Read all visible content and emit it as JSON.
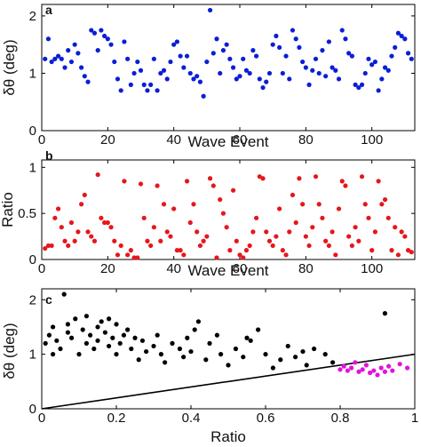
{
  "chart_data": [
    {
      "panel": "a",
      "type": "scatter",
      "xlabel": "Wave Event",
      "ylabel": "δθ (deg)",
      "xlim": [
        0,
        113
      ],
      "ylim": [
        0,
        2.2
      ],
      "xticks": [
        0,
        20,
        40,
        60,
        80,
        100
      ],
      "yticks": [
        0,
        1,
        2
      ],
      "color": "#0a1ed6",
      "x": [
        1,
        2,
        3,
        4,
        5,
        6,
        7,
        8,
        9,
        10,
        11,
        12,
        13,
        14,
        15,
        16,
        17,
        18,
        19,
        20,
        21,
        22,
        23,
        24,
        25,
        26,
        27,
        28,
        29,
        30,
        31,
        32,
        33,
        34,
        35,
        36,
        37,
        38,
        39,
        40,
        41,
        42,
        43,
        44,
        45,
        46,
        47,
        48,
        49,
        50,
        51,
        52,
        53,
        54,
        55,
        56,
        57,
        58,
        59,
        60,
        61,
        62,
        63,
        64,
        65,
        66,
        67,
        68,
        69,
        70,
        71,
        72,
        73,
        74,
        75,
        76,
        77,
        78,
        79,
        80,
        81,
        82,
        83,
        84,
        85,
        86,
        87,
        88,
        89,
        90,
        91,
        92,
        93,
        94,
        95,
        96,
        97,
        98,
        99,
        100,
        101,
        102,
        103,
        104,
        105,
        106,
        107,
        108,
        109,
        110,
        111,
        112
      ],
      "y": [
        1.25,
        1.6,
        1.2,
        1.25,
        1.3,
        1.25,
        1.1,
        1.4,
        1.2,
        1.5,
        1.35,
        1.1,
        0.95,
        0.85,
        1.75,
        1.7,
        1.4,
        1.75,
        1.65,
        1.6,
        1.5,
        1.2,
        0.9,
        0.7,
        1.55,
        1.25,
        0.8,
        1.0,
        1.2,
        1.05,
        0.8,
        0.7,
        0.8,
        1.25,
        0.7,
        1.0,
        1.05,
        0.9,
        1.2,
        1.5,
        1.55,
        1.3,
        1.1,
        1.3,
        1.0,
        0.9,
        0.95,
        0.85,
        0.6,
        1.2,
        2.1,
        1.35,
        1.6,
        1.0,
        1.4,
        1.5,
        1.25,
        1.1,
        0.9,
        0.95,
        1.25,
        1.05,
        1.0,
        1.4,
        1.3,
        0.9,
        0.75,
        0.85,
        1.0,
        1.5,
        1.65,
        1.45,
        1.0,
        1.3,
        0.9,
        1.75,
        1.6,
        1.45,
        1.2,
        1.1,
        0.8,
        1.05,
        1.25,
        1.0,
        1.4,
        0.95,
        1.55,
        1.1,
        1.05,
        0.9,
        1.75,
        1.6,
        1.35,
        1.3,
        0.8,
        0.75,
        0.8,
        1.0,
        1.25,
        1.15,
        1.2,
        0.7,
        0.9,
        1.1,
        1.05,
        1.3,
        1.45,
        1.7,
        1.65,
        1.6,
        1.35,
        1.25
      ]
    },
    {
      "panel": "b",
      "type": "scatter",
      "xlabel": "Wave Event",
      "ylabel": "Ratio",
      "xlim": [
        0,
        113
      ],
      "ylim": [
        0,
        1.08
      ],
      "xticks": [
        0,
        20,
        40,
        60,
        80,
        100
      ],
      "yticks": [
        0,
        0.5,
        1
      ],
      "color": "#e6161c",
      "x": [
        1,
        2,
        3,
        4,
        5,
        6,
        7,
        8,
        9,
        10,
        11,
        12,
        13,
        14,
        15,
        16,
        17,
        18,
        19,
        20,
        21,
        22,
        23,
        24,
        25,
        26,
        27,
        28,
        29,
        30,
        31,
        32,
        33,
        34,
        35,
        36,
        37,
        38,
        39,
        40,
        41,
        42,
        43,
        44,
        45,
        46,
        47,
        48,
        49,
        50,
        51,
        52,
        53,
        54,
        55,
        56,
        57,
        58,
        59,
        60,
        61,
        62,
        63,
        64,
        65,
        66,
        67,
        68,
        69,
        70,
        71,
        72,
        73,
        74,
        75,
        76,
        77,
        78,
        79,
        80,
        81,
        82,
        83,
        84,
        85,
        86,
        87,
        88,
        89,
        90,
        91,
        92,
        93,
        94,
        95,
        96,
        97,
        98,
        99,
        100,
        101,
        102,
        103,
        104,
        105,
        106,
        107,
        108,
        109,
        110,
        111,
        112
      ],
      "y": [
        0.12,
        0.15,
        0.15,
        0.45,
        0.55,
        0.35,
        0.2,
        0.15,
        0.4,
        0.2,
        0.3,
        0.6,
        0.7,
        0.3,
        0.25,
        0.2,
        0.92,
        0.45,
        0.4,
        0.4,
        0.35,
        0.2,
        0.05,
        0.15,
        0.85,
        0.05,
        0.1,
        0.02,
        0.02,
        0.82,
        0.45,
        0.2,
        0.15,
        0.35,
        0.8,
        0.2,
        0.6,
        0.3,
        0.25,
        0.55,
        0.1,
        0.1,
        0.05,
        0.85,
        0.4,
        0.6,
        0.3,
        0.15,
        0.2,
        0.25,
        0.88,
        0.8,
        0.02,
        0.65,
        0.5,
        0.35,
        0.1,
        0.75,
        0.2,
        0.05,
        0.02,
        0.1,
        0.15,
        0.3,
        0.45,
        0.9,
        0.88,
        0.3,
        0.2,
        0.15,
        0.25,
        0.55,
        0.1,
        0.05,
        0.3,
        0.7,
        0.4,
        0.88,
        0.6,
        0.25,
        0.15,
        0.35,
        0.9,
        0.6,
        0.45,
        0.2,
        0.15,
        0.3,
        0.05,
        0.55,
        0.85,
        0.8,
        0.25,
        0.15,
        0.35,
        0.2,
        0.9,
        0.6,
        0.45,
        0.1,
        0.3,
        0.85,
        0.6,
        0.65,
        0.45,
        0.1,
        0.35,
        0.05,
        0.3,
        0.25,
        0.1,
        0.08
      ]
    },
    {
      "panel": "c",
      "type": "scatter",
      "xlabel": "Ratio",
      "ylabel": "δθ (deg)",
      "xlim": [
        0,
        1
      ],
      "ylim": [
        0,
        2.2
      ],
      "xticks": [
        0,
        0.2,
        0.4,
        0.6,
        0.8,
        1
      ],
      "xtick_labels": [
        "0",
        "0.2",
        "0.4",
        "0.6",
        "0.8",
        "1"
      ],
      "yticks": [
        0,
        1,
        2
      ],
      "line": {
        "x": [
          0,
          1
        ],
        "y": [
          0,
          1
        ],
        "color": "#000000"
      },
      "series": [
        {
          "color": "#000000",
          "x": [
            0.01,
            0.02,
            0.03,
            0.03,
            0.04,
            0.05,
            0.06,
            0.07,
            0.07,
            0.08,
            0.09,
            0.1,
            0.11,
            0.12,
            0.12,
            0.13,
            0.14,
            0.15,
            0.15,
            0.16,
            0.17,
            0.18,
            0.18,
            0.19,
            0.2,
            0.2,
            0.21,
            0.22,
            0.23,
            0.24,
            0.25,
            0.26,
            0.27,
            0.28,
            0.3,
            0.31,
            0.32,
            0.33,
            0.35,
            0.37,
            0.38,
            0.39,
            0.4,
            0.41,
            0.42,
            0.44,
            0.45,
            0.47,
            0.48,
            0.5,
            0.52,
            0.54,
            0.55,
            0.56,
            0.58,
            0.6,
            0.62,
            0.64,
            0.66,
            0.68,
            0.7,
            0.71,
            0.73,
            0.76,
            0.78,
            0.92
          ],
          "y": [
            1.2,
            1.35,
            1.0,
            1.5,
            1.25,
            1.1,
            2.1,
            1.4,
            1.55,
            1.3,
            1.65,
            1.0,
            1.45,
            1.7,
            1.2,
            1.35,
            1.1,
            1.5,
            1.25,
            1.6,
            1.4,
            1.15,
            1.65,
            1.3,
            1.0,
            1.55,
            1.2,
            1.35,
            1.45,
            1.1,
            1.3,
            0.9,
            1.25,
            1.05,
            1.15,
            1.35,
            1.0,
            0.85,
            1.2,
            1.1,
            0.95,
            1.3,
            1.05,
            1.45,
            1.6,
            0.9,
            1.2,
            1.35,
            1.0,
            0.8,
            1.1,
            0.95,
            1.3,
            1.25,
            1.45,
            1.0,
            0.75,
            0.9,
            1.15,
            0.95,
            1.05,
            0.8,
            1.1,
            1.0,
            0.85,
            1.75
          ]
        },
        {
          "color": "#e213d9",
          "x": [
            0.8,
            0.81,
            0.82,
            0.83,
            0.84,
            0.85,
            0.86,
            0.87,
            0.88,
            0.89,
            0.9,
            0.91,
            0.92,
            0.93,
            0.94,
            0.96,
            0.98
          ],
          "y": [
            0.72,
            0.78,
            0.7,
            0.75,
            0.85,
            0.68,
            0.72,
            0.8,
            0.66,
            0.7,
            0.62,
            0.75,
            0.68,
            0.78,
            0.7,
            0.82,
            0.75
          ]
        }
      ]
    }
  ]
}
